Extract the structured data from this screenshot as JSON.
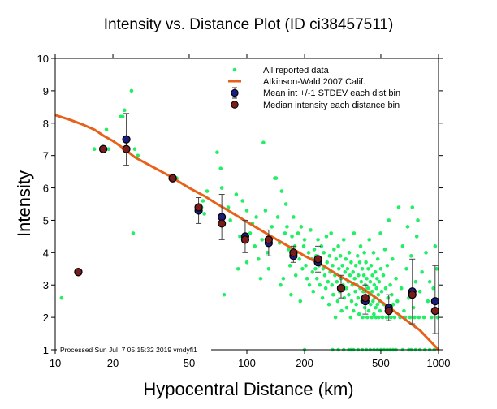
{
  "chart_data": {
    "type": "scatter",
    "title": "Intensity vs. Distance Plot (ID ci38457511)",
    "xlabel": "Hypocentral Distance (km)",
    "ylabel": "Intensity",
    "xscale": "log",
    "xlim": [
      10,
      1000
    ],
    "ylim": [
      1,
      10
    ],
    "xticks": [
      10,
      20,
      50,
      100,
      200,
      500,
      1000
    ],
    "xtick_labels": [
      "10",
      "20",
      "50",
      "100",
      "200",
      "500",
      "1000"
    ],
    "yticks": [
      1,
      2,
      3,
      4,
      5,
      6,
      7,
      8,
      9,
      10
    ],
    "ytick_labels": [
      "1",
      "2",
      "3",
      "4",
      "5",
      "6",
      "7",
      "8",
      "9",
      "10"
    ],
    "grid": false,
    "legend_position": "top-right",
    "footer": "Processed Sun Jul  7 05:15:32 2019 vmdyfi1",
    "colors": {
      "reported": "#22ee66",
      "model": "#e8611a",
      "mean": "#1c1c7a",
      "median": "#7a1c1c"
    },
    "legend": [
      {
        "label": "All reported data",
        "kind": "dot"
      },
      {
        "label": "Atkinson-Wald 2007 Calif.",
        "kind": "line"
      },
      {
        "label": "Mean int +/-1 STDEV each dist bin",
        "kind": "mean"
      },
      {
        "label": "Median intensity each distance bin",
        "kind": "median"
      }
    ],
    "series": [
      {
        "name": "Atkinson-Wald 2007 Calif.",
        "type": "line",
        "x": [
          10,
          12,
          14,
          16,
          18,
          20,
          23,
          26,
          30,
          40,
          50,
          60,
          70,
          80,
          100,
          130,
          170,
          200,
          250,
          300,
          400,
          500,
          600,
          700,
          800,
          1000
        ],
        "y": [
          8.25,
          8.1,
          7.95,
          7.8,
          7.6,
          7.45,
          7.2,
          6.95,
          6.75,
          6.35,
          6.0,
          5.75,
          5.5,
          5.3,
          4.95,
          4.55,
          4.15,
          3.9,
          3.6,
          3.3,
          2.9,
          2.5,
          2.15,
          1.85,
          1.6,
          1.0
        ]
      },
      {
        "name": "Mean int +/-1 STDEV each dist bin",
        "type": "errorbar",
        "x": [
          13.2,
          17.8,
          23.5,
          41,
          56,
          74,
          98,
          130,
          175,
          235,
          310,
          415,
          550,
          730,
          960
        ],
        "y": [
          3.4,
          7.2,
          7.5,
          6.3,
          5.3,
          5.1,
          4.5,
          4.3,
          3.9,
          3.7,
          2.9,
          2.5,
          2.3,
          2.8,
          2.5
        ],
        "err_low": [
          3.4,
          7.2,
          6.7,
          6.3,
          4.9,
          4.4,
          4.0,
          3.9,
          3.7,
          3.4,
          2.6,
          2.1,
          1.9,
          1.8,
          1.5
        ],
        "err_high": [
          3.4,
          7.2,
          8.3,
          6.3,
          5.7,
          5.8,
          5.0,
          4.7,
          4.2,
          4.2,
          3.3,
          3.0,
          2.7,
          3.8,
          3.6
        ]
      },
      {
        "name": "Median intensity each distance bin",
        "type": "scatter",
        "x": [
          13.2,
          17.8,
          23.5,
          41,
          56,
          74,
          98,
          130,
          175,
          235,
          310,
          415,
          550,
          730,
          960
        ],
        "y": [
          3.4,
          7.2,
          7.2,
          6.3,
          5.4,
          4.9,
          4.4,
          4.4,
          4.0,
          3.8,
          2.9,
          2.6,
          2.2,
          2.7,
          2.2
        ]
      },
      {
        "name": "All reported data",
        "type": "scatter",
        "points": [
          [
            10.8,
            2.6
          ],
          [
            16,
            7.2
          ],
          [
            18.5,
            7.8
          ],
          [
            19,
            7.2
          ],
          [
            22,
            8.2
          ],
          [
            22.5,
            8.2
          ],
          [
            23,
            8.4
          ],
          [
            25,
            9.0
          ],
          [
            25.5,
            4.6
          ],
          [
            26,
            7.2
          ],
          [
            27,
            7.0
          ],
          [
            43,
            6.3
          ],
          [
            58,
            5.4
          ],
          [
            59,
            5.6
          ],
          [
            60,
            5.2
          ],
          [
            62,
            5.9
          ],
          [
            70,
            7.1
          ],
          [
            73,
            6.6
          ],
          [
            74,
            6.0
          ],
          [
            76,
            2.7
          ],
          [
            80,
            5.4
          ],
          [
            82,
            5.0
          ],
          [
            88,
            5.8
          ],
          [
            90,
            3.5
          ],
          [
            92,
            4.5
          ],
          [
            95,
            5.6
          ],
          [
            100,
            5.3
          ],
          [
            100,
            3.7
          ],
          [
            104,
            4.6
          ],
          [
            107,
            4.9
          ],
          [
            110,
            4.2
          ],
          [
            112,
            5.1
          ],
          [
            115,
            3.8
          ],
          [
            118,
            3.2
          ],
          [
            120,
            4.4
          ],
          [
            122,
            7.4
          ],
          [
            125,
            5.3
          ],
          [
            128,
            4.0
          ],
          [
            130,
            3.5
          ],
          [
            132,
            4.5
          ],
          [
            135,
            4.8
          ],
          [
            140,
            6.3
          ],
          [
            142,
            6.3
          ],
          [
            145,
            5.1
          ],
          [
            148,
            4.3
          ],
          [
            150,
            3.0
          ],
          [
            152,
            5.9
          ],
          [
            155,
            3.2
          ],
          [
            158,
            4.6
          ],
          [
            160,
            5.5
          ],
          [
            162,
            4.8
          ],
          [
            165,
            4.1
          ],
          [
            168,
            3.6
          ],
          [
            170,
            2.7
          ],
          [
            172,
            4.5
          ],
          [
            175,
            5.1
          ],
          [
            178,
            4.2
          ],
          [
            180,
            3.3
          ],
          [
            182,
            4.0
          ],
          [
            185,
            4.6
          ],
          [
            188,
            3.8
          ],
          [
            190,
            2.5
          ],
          [
            192,
            4.8
          ],
          [
            195,
            3.5
          ],
          [
            198,
            4.2
          ],
          [
            200,
            1.0
          ],
          [
            200,
            4.4
          ],
          [
            203,
            3.6
          ],
          [
            206,
            3.2
          ],
          [
            210,
            4.0
          ],
          [
            212,
            3.0
          ],
          [
            215,
            4.7
          ],
          [
            218,
            3.8
          ],
          [
            220,
            3.4
          ],
          [
            222,
            2.8
          ],
          [
            225,
            4.1
          ],
          [
            228,
            3.5
          ],
          [
            230,
            3.9
          ],
          [
            232,
            3.2
          ],
          [
            235,
            4.4
          ],
          [
            238,
            3.6
          ],
          [
            240,
            3.0
          ],
          [
            242,
            3.8
          ],
          [
            245,
            4.2
          ],
          [
            248,
            2.6
          ],
          [
            250,
            3.5
          ],
          [
            252,
            4.0
          ],
          [
            255,
            3.3
          ],
          [
            258,
            2.9
          ],
          [
            260,
            4.5
          ],
          [
            262,
            3.7
          ],
          [
            265,
            3.1
          ],
          [
            268,
            2.4
          ],
          [
            270,
            3.9
          ],
          [
            272,
            3.4
          ],
          [
            275,
            4.6
          ],
          [
            278,
            3.0
          ],
          [
            280,
            3.6
          ],
          [
            282,
            2.7
          ],
          [
            285,
            4.1
          ],
          [
            288,
            3.3
          ],
          [
            290,
            2.0
          ],
          [
            292,
            3.8
          ],
          [
            295,
            3.1
          ],
          [
            298,
            2.5
          ],
          [
            300,
            4.2
          ],
          [
            302,
            3.5
          ],
          [
            305,
            2.8
          ],
          [
            308,
            3.9
          ],
          [
            310,
            3.2
          ],
          [
            312,
            2.2
          ],
          [
            315,
            3.6
          ],
          [
            318,
            3.0
          ],
          [
            320,
            4.4
          ],
          [
            322,
            2.6
          ],
          [
            325,
            3.4
          ],
          [
            328,
            3.8
          ],
          [
            330,
            2.9
          ],
          [
            332,
            2.3
          ],
          [
            335,
            3.5
          ],
          [
            338,
            3.1
          ],
          [
            340,
            2.7
          ],
          [
            342,
            4.0
          ],
          [
            345,
            3.3
          ],
          [
            348,
            2.0
          ],
          [
            350,
            3.7
          ],
          [
            352,
            2.5
          ],
          [
            355,
            3.0
          ],
          [
            358,
            3.4
          ],
          [
            360,
            2.2
          ],
          [
            362,
            4.6
          ],
          [
            365,
            3.2
          ],
          [
            368,
            2.8
          ],
          [
            370,
            3.6
          ],
          [
            372,
            2.4
          ],
          [
            375,
            3.0
          ],
          [
            378,
            3.9
          ],
          [
            380,
            2.6
          ],
          [
            382,
            3.3
          ],
          [
            385,
            2.1
          ],
          [
            388,
            3.7
          ],
          [
            390,
            2.9
          ],
          [
            392,
            4.2
          ],
          [
            395,
            3.1
          ],
          [
            398,
            2.5
          ],
          [
            400,
            3.5
          ],
          [
            402,
            2.0
          ],
          [
            405,
            2.8
          ],
          [
            408,
            3.3
          ],
          [
            410,
            4.0
          ],
          [
            412,
            2.3
          ],
          [
            415,
            3.0
          ],
          [
            418,
            3.7
          ],
          [
            420,
            2.6
          ],
          [
            422,
            3.2
          ],
          [
            425,
            2.0
          ],
          [
            428,
            2.9
          ],
          [
            430,
            3.5
          ],
          [
            432,
            2.2
          ],
          [
            435,
            4.4
          ],
          [
            438,
            2.7
          ],
          [
            440,
            3.1
          ],
          [
            442,
            2.4
          ],
          [
            445,
            3.6
          ],
          [
            448,
            2.0
          ],
          [
            450,
            2.8
          ],
          [
            452,
            3.3
          ],
          [
            455,
            2.5
          ],
          [
            458,
            4.0
          ],
          [
            460,
            2.1
          ],
          [
            462,
            3.0
          ],
          [
            465,
            2.6
          ],
          [
            468,
            3.4
          ],
          [
            470,
            2.3
          ],
          [
            472,
            2.0
          ],
          [
            475,
            2.9
          ],
          [
            478,
            3.2
          ],
          [
            480,
            2.4
          ],
          [
            482,
            3.8
          ],
          [
            485,
            2.7
          ],
          [
            488,
            2.0
          ],
          [
            490,
            3.1
          ],
          [
            492,
            2.5
          ],
          [
            495,
            2.2
          ],
          [
            498,
            4.6
          ],
          [
            500,
            3.5
          ],
          [
            505,
            2.8
          ],
          [
            510,
            2.0
          ],
          [
            515,
            3.3
          ],
          [
            520,
            2.4
          ],
          [
            525,
            4.1
          ],
          [
            530,
            2.9
          ],
          [
            535,
            2.0
          ],
          [
            540,
            3.6
          ],
          [
            545,
            2.6
          ],
          [
            550,
            5.0
          ],
          [
            555,
            2.2
          ],
          [
            560,
            3.0
          ],
          [
            565,
            2.0
          ],
          [
            570,
            2.7
          ],
          [
            575,
            3.8
          ],
          [
            580,
            2.4
          ],
          [
            590,
            2.0
          ],
          [
            600,
            3.2
          ],
          [
            610,
            2.5
          ],
          [
            620,
            5.4
          ],
          [
            630,
            2.0
          ],
          [
            640,
            2.9
          ],
          [
            650,
            4.2
          ],
          [
            660,
            2.2
          ],
          [
            670,
            2.0
          ],
          [
            680,
            3.5
          ],
          [
            690,
            4.8
          ],
          [
            700,
            2.6
          ],
          [
            710,
            2.0
          ],
          [
            720,
            3.9
          ],
          [
            730,
            5.4
          ],
          [
            740,
            2.3
          ],
          [
            750,
            2.0
          ],
          [
            760,
            3.1
          ],
          [
            770,
            4.5
          ],
          [
            780,
            5.0
          ],
          [
            790,
            2.0
          ],
          [
            800,
            2.8
          ],
          [
            820,
            3.4
          ],
          [
            840,
            2.0
          ],
          [
            860,
            4.0
          ],
          [
            880,
            2.5
          ],
          [
            900,
            3.1
          ],
          [
            920,
            2.0
          ],
          [
            940,
            2.9
          ],
          [
            960,
            4.2
          ],
          [
            980,
            3.5
          ],
          [
            990,
            2.0
          ],
          [
            280,
            1.0
          ],
          [
            300,
            1.0
          ],
          [
            320,
            1.0
          ],
          [
            340,
            1.0
          ],
          [
            350,
            1.0
          ],
          [
            360,
            1.0
          ],
          [
            380,
            1.0
          ],
          [
            400,
            1.0
          ],
          [
            420,
            1.0
          ],
          [
            440,
            1.0
          ],
          [
            460,
            1.0
          ],
          [
            480,
            1.0
          ],
          [
            500,
            1.0
          ],
          [
            520,
            1.0
          ],
          [
            540,
            1.0
          ],
          [
            560,
            1.0
          ],
          [
            580,
            1.0
          ],
          [
            600,
            1.0
          ],
          [
            650,
            1.0
          ],
          [
            700,
            1.0
          ],
          [
            720,
            1.0
          ],
          [
            760,
            1.0
          ],
          [
            800,
            1.0
          ],
          [
            850,
            1.0
          ],
          [
            900,
            1.0
          ],
          [
            950,
            1.0
          ]
        ]
      }
    ]
  }
}
